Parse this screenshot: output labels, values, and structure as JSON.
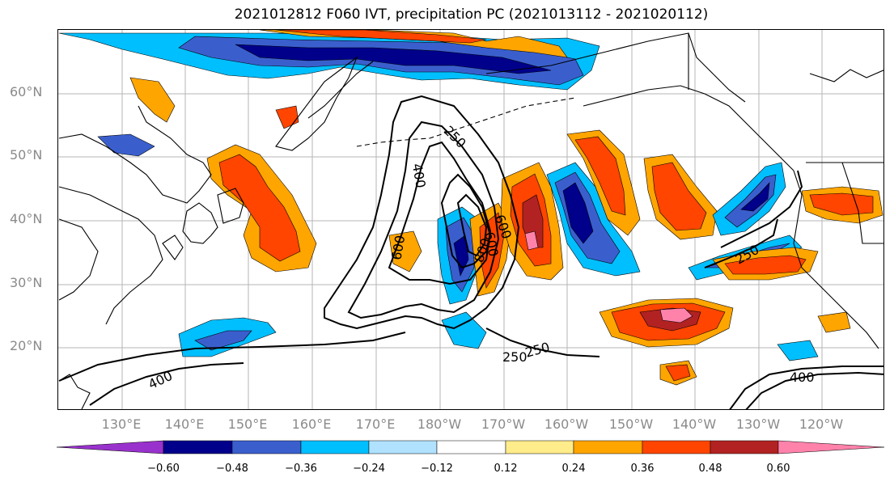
{
  "title": "2021012812 F060 IVT, precipitation PC (2021013112 - 2021020112)",
  "latitude_labels": [
    "60°N",
    "50°N",
    "40°N",
    "30°N",
    "20°N"
  ],
  "longitude_labels": [
    "130°E",
    "140°E",
    "150°E",
    "160°E",
    "170°E",
    "180°W",
    "170°W",
    "160°W",
    "150°W",
    "140°W",
    "130°W",
    "120°W"
  ],
  "contour_labels": [
    "250",
    "400",
    "600",
    "800",
    "600",
    "600",
    "250",
    "400",
    "250",
    "250",
    "400"
  ],
  "colorbar": {
    "ticks": [
      "−0.60",
      "−0.48",
      "−0.36",
      "−0.24",
      "−0.12",
      "0.12",
      "0.24",
      "0.36",
      "0.48",
      "0.60"
    ],
    "colors": [
      "#9932cc",
      "#00008b",
      "#3a5fcd",
      "#00bfff",
      "#b0e2ff",
      "#ffffff",
      "#ffec8b",
      "#ffa500",
      "#ff4500",
      "#b22222",
      "#ff82ab"
    ]
  }
}
